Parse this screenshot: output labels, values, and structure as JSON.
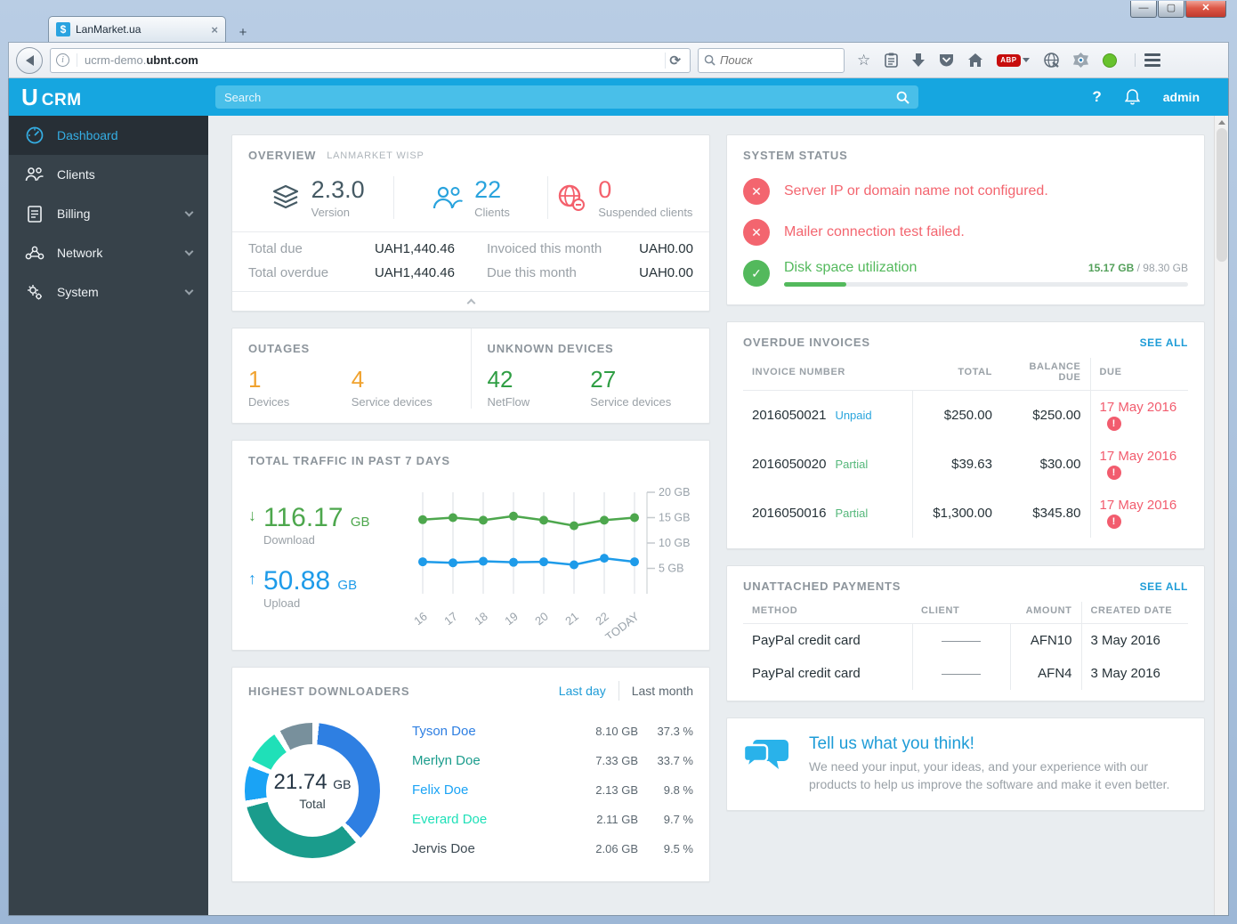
{
  "browser": {
    "tab_title": "LanMarket.ua",
    "tab_favicon": "$",
    "url_prefix": "ucrm-demo.",
    "url_domain": "ubnt.com",
    "search_placeholder": "Поиск",
    "abp_label": "ABP",
    "reload_glyph": "⟳",
    "newtab_glyph": "+",
    "close_tab_glyph": "×",
    "win_min": "—",
    "win_max": "▢",
    "win_close": "✕"
  },
  "app_header": {
    "logo_u": "U",
    "logo_text": "CRM",
    "search_placeholder": "Search",
    "help_label": "?",
    "user_label": "admin"
  },
  "sidebar": {
    "items": [
      {
        "label": "Dashboard"
      },
      {
        "label": "Clients"
      },
      {
        "label": "Billing"
      },
      {
        "label": "Network"
      },
      {
        "label": "System"
      }
    ]
  },
  "overview": {
    "title": "OVERVIEW",
    "subtitle": "LANMARKET WISP",
    "stats": [
      {
        "value": "2.3.0",
        "label": "Version",
        "color": "#455a64"
      },
      {
        "value": "22",
        "label": "Clients",
        "color": "#29a3dd"
      },
      {
        "value": "0",
        "label": "Suspended clients",
        "color": "#f4606c"
      }
    ],
    "rows": [
      {
        "label": "Total due",
        "value": "UAH1,440.46"
      },
      {
        "label": "Invoiced this month",
        "value": "UAH0.00"
      },
      {
        "label": "Total overdue",
        "value": "UAH1,440.46"
      },
      {
        "label": "Due this month",
        "value": "UAH0.00"
      }
    ]
  },
  "system_status": {
    "title": "SYSTEM STATUS",
    "errors": [
      "Server IP or domain name not configured.",
      "Mailer connection test failed."
    ],
    "disk": {
      "label": "Disk space utilization",
      "used": "15.17 GB",
      "total": "98.30 GB",
      "percent": 15.4
    }
  },
  "outages": {
    "title": "OUTAGES",
    "stats": [
      {
        "value": "1",
        "label": "Devices"
      },
      {
        "value": "4",
        "label": "Service devices"
      }
    ]
  },
  "unknown_devices": {
    "title": "UNKNOWN DEVICES",
    "stats": [
      {
        "value": "42",
        "label": "NetFlow"
      },
      {
        "value": "27",
        "label": "Service devices"
      }
    ]
  },
  "traffic": {
    "title": "TOTAL TRAFFIC IN PAST 7 DAYS",
    "download_value": "116.17",
    "download_unit": "GB",
    "download_label": "Download",
    "upload_value": "50.88",
    "upload_unit": "GB",
    "upload_label": "Upload"
  },
  "overdue_invoices": {
    "title": "OVERDUE INVOICES",
    "see_all": "SEE ALL",
    "headers": [
      "INVOICE NUMBER",
      "TOTAL",
      "BALANCE DUE",
      "DUE"
    ],
    "rows": [
      {
        "number": "2016050021",
        "status": "Unpaid",
        "total": "$250.00",
        "balance": "$250.00",
        "due": "17 May 2016"
      },
      {
        "number": "2016050020",
        "status": "Partial",
        "total": "$39.63",
        "balance": "$30.00",
        "due": "17 May 2016"
      },
      {
        "number": "2016050016",
        "status": "Partial",
        "total": "$1,300.00",
        "balance": "$345.80",
        "due": "17 May 2016"
      }
    ]
  },
  "unattached_payments": {
    "title": "UNATTACHED PAYMENTS",
    "see_all": "SEE ALL",
    "headers": [
      "METHOD",
      "CLIENT",
      "AMOUNT",
      "CREATED DATE"
    ],
    "rows": [
      {
        "method": "PayPal credit card",
        "amount": "AFN10",
        "date": "3 May 2016"
      },
      {
        "method": "PayPal credit card",
        "amount": "AFN4",
        "date": "3 May 2016"
      }
    ]
  },
  "downloaders": {
    "title": "HIGHEST DOWNLOADERS",
    "tab_active": "Last day",
    "tab_inactive": "Last month",
    "total_value": "21.74",
    "total_unit": "GB",
    "total_label": "Total",
    "rows": [
      {
        "name": "Tyson Doe",
        "gb": "8.10 GB",
        "pct": "37.3 %",
        "color": "#2e7fe2"
      },
      {
        "name": "Merlyn Doe",
        "gb": "7.33 GB",
        "pct": "33.7 %",
        "color": "#1a9c8c"
      },
      {
        "name": "Felix Doe",
        "gb": "2.13 GB",
        "pct": "9.8 %",
        "color": "#1aa3f5"
      },
      {
        "name": "Everard Doe",
        "gb": "2.11 GB",
        "pct": "9.7 %",
        "color": "#1fe0b8"
      },
      {
        "name": "Jervis Doe",
        "gb": "2.06 GB",
        "pct": "9.5 %",
        "color": "#3e4b54"
      }
    ]
  },
  "feedback": {
    "title": "Tell us what you think!",
    "body": "We need your input, your ideas, and your experience with our products to help us improve the software and make it even better."
  },
  "chart_data": [
    {
      "type": "line",
      "title": "Total traffic in past 7 days",
      "x": [
        "16",
        "17",
        "18",
        "19",
        "20",
        "21",
        "22",
        "TODAY"
      ],
      "series": [
        {
          "name": "Download",
          "color": "#4da74d",
          "values": [
            14.6,
            15.0,
            14.5,
            15.3,
            14.5,
            13.4,
            14.5,
            15.0
          ]
        },
        {
          "name": "Upload",
          "color": "#1e9be9",
          "values": [
            6.3,
            6.1,
            6.4,
            6.2,
            6.3,
            5.7,
            7.0,
            6.3
          ]
        }
      ],
      "ylim": [
        0,
        20
      ],
      "yticks": [
        5,
        10,
        15,
        20
      ],
      "ytick_suffix": " GB",
      "grid": "vertical-only",
      "axis_side": "right",
      "legend_position": "none"
    },
    {
      "type": "pie",
      "title": "Highest downloaders (last day)",
      "total": "21.74 GB",
      "segments": [
        {
          "name": "Tyson Doe",
          "value": 37.3,
          "color": "#2e7fe2"
        },
        {
          "name": "Merlyn Doe",
          "value": 33.7,
          "color": "#1a9c8c"
        },
        {
          "name": "Felix Doe",
          "value": 9.8,
          "color": "#1aa3f5"
        },
        {
          "name": "Everard Doe",
          "value": 9.7,
          "color": "#1fe0b8"
        },
        {
          "name": "Jervis Doe",
          "value": 9.5,
          "color": "#78909c"
        }
      ]
    }
  ]
}
